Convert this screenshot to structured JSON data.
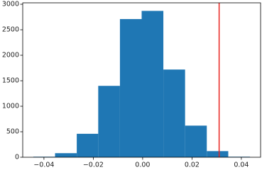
{
  "chart_data": {
    "type": "histogram",
    "bins": [
      -0.0443,
      -0.0355,
      -0.0267,
      -0.018,
      -0.0092,
      -0.0004,
      0.0084,
      0.0172,
      0.026,
      0.0347,
      0.0435
    ],
    "values": [
      10,
      80,
      460,
      1400,
      2710,
      2870,
      1720,
      620,
      120,
      10
    ],
    "color": "#1f77b4",
    "xlim": [
      -0.0486,
      0.0478
    ],
    "ylim": [
      0,
      3028
    ],
    "xticks": [
      {
        "value": -0.04,
        "label": "−0.04"
      },
      {
        "value": -0.02,
        "label": "−0.02"
      },
      {
        "value": 0,
        "label": "0.00"
      },
      0.02,
      0.04
    ],
    "yticks": [
      0,
      500,
      1000,
      1500,
      2000,
      2500,
      3000
    ],
    "vline": {
      "x": 0.031,
      "color": "#e8231f"
    }
  }
}
